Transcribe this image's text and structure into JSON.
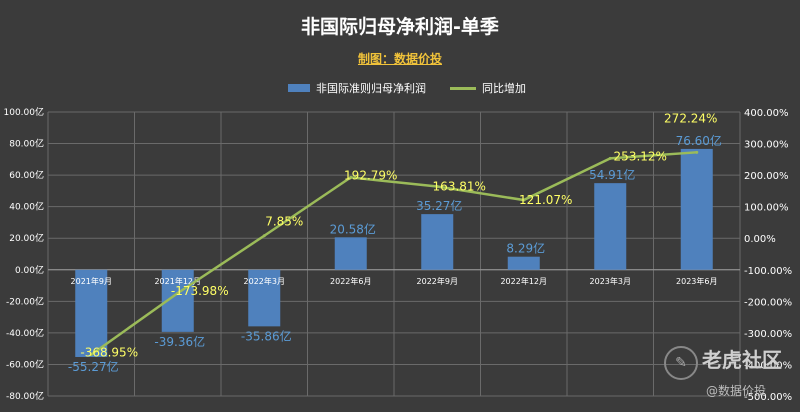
{
  "chart_data": {
    "type": "bar",
    "title": "非国际归母净利润-单季",
    "subtitle": "制图：数据价投",
    "categories": [
      "2021年9月",
      "2021年12月",
      "2022年3月",
      "2022年6月",
      "2022年9月",
      "2022年12月",
      "2023年3月",
      "2023年6月"
    ],
    "series": [
      {
        "name": "非国际准则归母净利润",
        "type": "bar",
        "axis": "left",
        "values": [
          -55.27,
          -39.36,
          -35.86,
          20.58,
          35.27,
          8.29,
          54.91,
          76.6
        ],
        "labels": [
          "-55.27亿",
          "-39.36亿",
          "-35.86亿",
          "20.58亿",
          "35.27亿",
          "8.29亿",
          "54.91亿",
          "76.60亿"
        ],
        "color": "#4f81bd"
      },
      {
        "name": "同比增加",
        "type": "line",
        "axis": "right",
        "values": [
          -368.95,
          -173.98,
          7.85,
          192.79,
          163.81,
          121.07,
          253.12,
          272.24
        ],
        "labels": [
          "-368.95%",
          "-173.98%",
          "7.85%",
          "192.79%",
          "163.81%",
          "121.07%",
          "253.12%",
          "272.24%"
        ],
        "color": "#9bbb59"
      }
    ],
    "y_left": {
      "ylim": [
        -80,
        100
      ],
      "ticks": [
        "-80.00亿",
        "-60.00亿",
        "-40.00亿",
        "-20.00亿",
        "0.00亿",
        "20.00亿",
        "40.00亿",
        "60.00亿",
        "80.00亿",
        "100.00亿"
      ]
    },
    "y_right": {
      "ylim": [
        -500,
        400
      ],
      "ticks": [
        "-500.00%",
        "-400.00%",
        "-300.00%",
        "-200.00%",
        "-100.00%",
        "0.00%",
        "100.00%",
        "200.00%",
        "300.00%",
        "400.00%"
      ]
    },
    "grid": true,
    "legend": "top-center"
  },
  "watermark": {
    "brand": "老虎社区",
    "author": "@数据价投"
  },
  "colors": {
    "background": "#3b3b3b",
    "bar": "#4f81bd",
    "line": "#9bbb59",
    "bar_label": "#5b9bd5",
    "line_label": "#ffff66",
    "grid": "#6a6a6a",
    "title": "#ffffff",
    "subtitle": "#f0c23a"
  }
}
